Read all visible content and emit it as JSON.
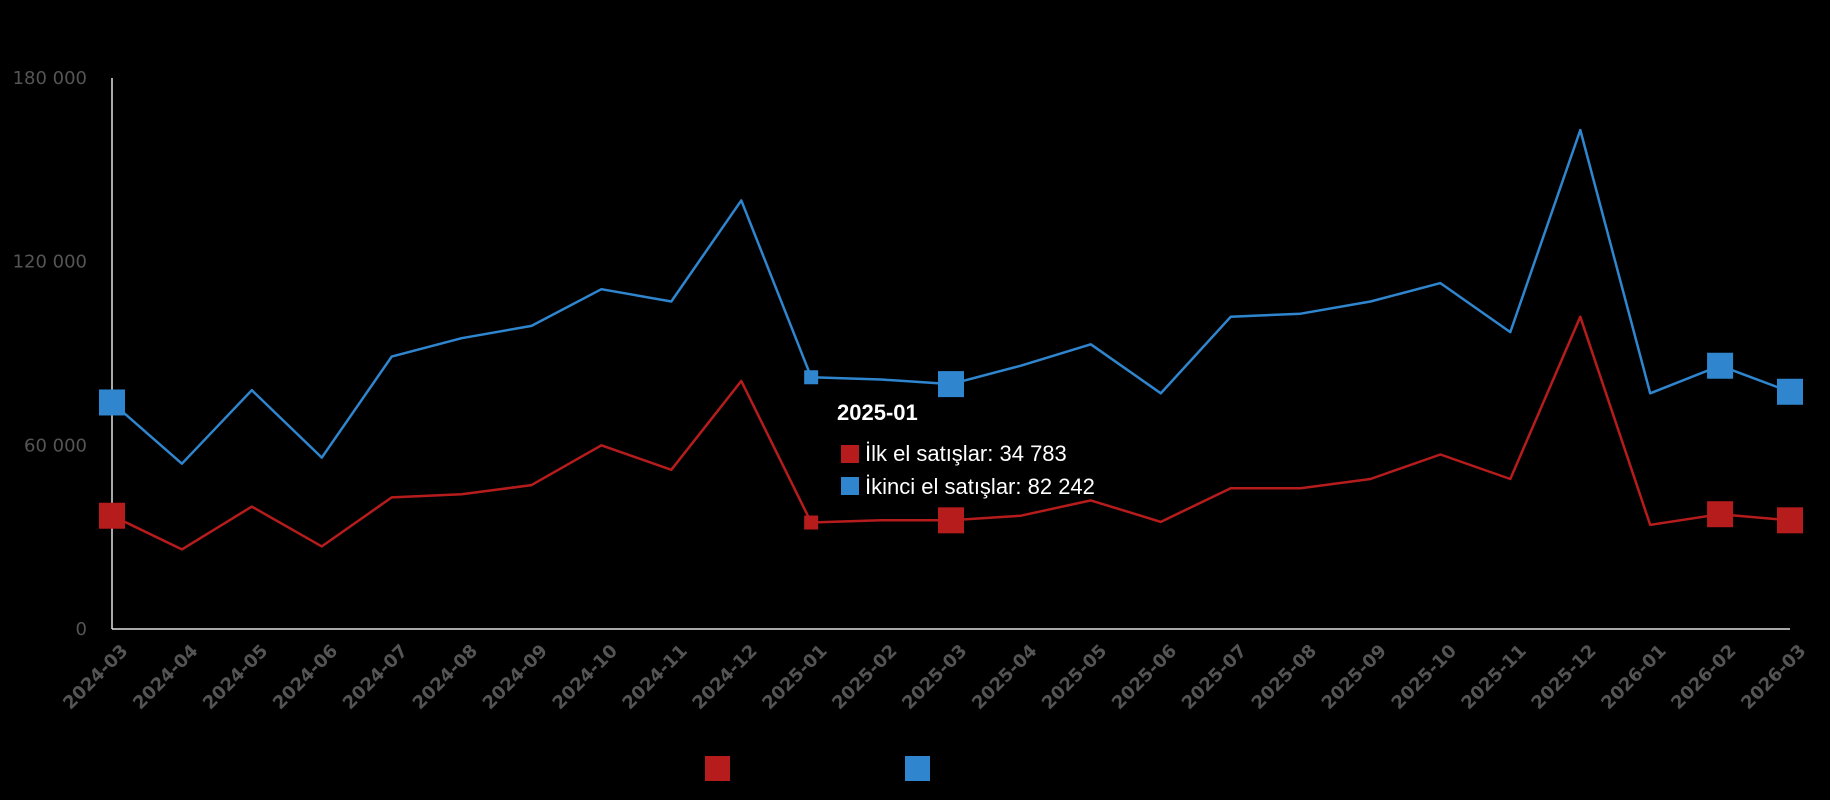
{
  "chart_data": {
    "type": "line",
    "categories": [
      "2024-03",
      "2024-04",
      "2024-05",
      "2024-06",
      "2024-07",
      "2024-08",
      "2024-09",
      "2024-10",
      "2024-11",
      "2024-12",
      "2025-01",
      "2025-02",
      "2025-03",
      "2025-04",
      "2025-05",
      "2025-06",
      "2025-07",
      "2025-08",
      "2025-09",
      "2025-10",
      "2025-11",
      "2025-12",
      "2026-01",
      "2026-02",
      "2026-03"
    ],
    "series": [
      {
        "name": "İlk el satışlar",
        "color": "#b71c1c",
        "values": [
          37000,
          26000,
          40000,
          27000,
          43000,
          44000,
          47000,
          60000,
          52000,
          81000,
          34783,
          35500,
          35500,
          37000,
          42000,
          35000,
          46000,
          46000,
          49000,
          57000,
          49000,
          102000,
          34000,
          37500,
          35500
        ]
      },
      {
        "name": "İkinci el satışlar",
        "color": "#2f86cf",
        "values": [
          74000,
          54000,
          78000,
          56000,
          89000,
          95000,
          99000,
          111000,
          107000,
          140000,
          82242,
          81500,
          80000,
          86000,
          93000,
          77000,
          102000,
          103000,
          107000,
          113000,
          97000,
          163000,
          77000,
          86000,
          77500
        ]
      }
    ],
    "ylim": [
      0,
      180000
    ],
    "yticks": [
      0,
      60000,
      120000,
      180000
    ],
    "ytick_labels": [
      "0",
      "60 000",
      "120 000",
      "180 000"
    ],
    "grid": false,
    "legend": "bottom-center",
    "tooltip": {
      "title": "2025-01",
      "rows": [
        "İlk el satışlar: 34 783",
        "İkinci el satışlar: 82 242"
      ]
    },
    "highlighted_markers": {
      "large": [
        "2024-03",
        "2025-03",
        "2026-02",
        "2026-03"
      ],
      "small": [
        "2025-01"
      ]
    }
  }
}
